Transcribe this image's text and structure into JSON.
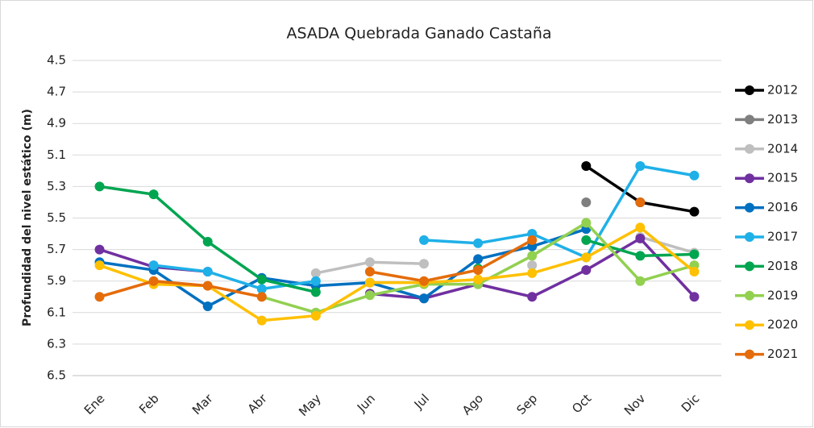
{
  "chart_data": {
    "type": "line",
    "title": "ASADA Quebrada Ganado Castaña",
    "y_label": "Profundidad del nivel estático (m)",
    "categories": [
      "Ene",
      "Feb",
      "Mar",
      "Abr",
      "May",
      "Jun",
      "Jul",
      "Ago",
      "Sep",
      "Oct",
      "Nov",
      "Dic"
    ],
    "ylim": [
      4.5,
      6.5
    ],
    "y_inverted": true,
    "yticks": [
      4.5,
      4.7,
      4.9,
      5.1,
      5.3,
      5.5,
      5.7,
      5.9,
      6.1,
      6.3,
      6.5
    ],
    "grid": true,
    "legend": "right",
    "series": [
      {
        "name": "2012",
        "color": "#000000",
        "values": [
          null,
          null,
          null,
          null,
          null,
          null,
          null,
          null,
          null,
          5.17,
          5.4,
          5.46
        ]
      },
      {
        "name": "2013",
        "color": "#7f7f7f",
        "values": [
          null,
          null,
          null,
          null,
          null,
          5.98,
          null,
          null,
          null,
          5.4,
          null,
          null
        ]
      },
      {
        "name": "2014",
        "color": "#bfbfbf",
        "values": [
          null,
          null,
          null,
          null,
          5.85,
          5.78,
          5.79,
          null,
          5.8,
          null,
          5.62,
          5.72
        ]
      },
      {
        "name": "2015",
        "color": "#7030a0",
        "values": [
          5.7,
          5.81,
          5.84,
          null,
          null,
          5.98,
          6.01,
          5.92,
          6.0,
          5.83,
          5.63,
          6.0
        ]
      },
      {
        "name": "2016",
        "color": "#0070c0",
        "values": [
          5.78,
          5.83,
          6.06,
          5.88,
          5.93,
          5.91,
          6.01,
          5.76,
          5.68,
          5.57,
          null,
          null
        ]
      },
      {
        "name": "2017",
        "color": "#1fb0e8",
        "values": [
          null,
          5.8,
          5.84,
          5.95,
          5.9,
          null,
          5.64,
          5.66,
          5.6,
          5.75,
          5.17,
          5.23
        ]
      },
      {
        "name": "2018",
        "color": "#00a550",
        "values": [
          5.3,
          5.35,
          5.65,
          5.89,
          5.97,
          null,
          null,
          5.82,
          null,
          5.64,
          5.74,
          5.73
        ]
      },
      {
        "name": "2019",
        "color": "#92d050",
        "values": [
          null,
          null,
          null,
          6.0,
          6.1,
          5.99,
          5.92,
          5.92,
          5.74,
          5.53,
          5.9,
          5.8
        ]
      },
      {
        "name": "2020",
        "color": "#ffc000",
        "values": [
          5.8,
          5.92,
          5.93,
          6.15,
          6.12,
          5.91,
          5.91,
          5.89,
          5.85,
          5.75,
          5.56,
          5.84
        ]
      },
      {
        "name": "2021",
        "color": "#e46c0a",
        "values": [
          6.0,
          5.9,
          5.93,
          6.0,
          null,
          5.84,
          5.9,
          5.83,
          5.64,
          null,
          5.4,
          null
        ]
      }
    ]
  }
}
